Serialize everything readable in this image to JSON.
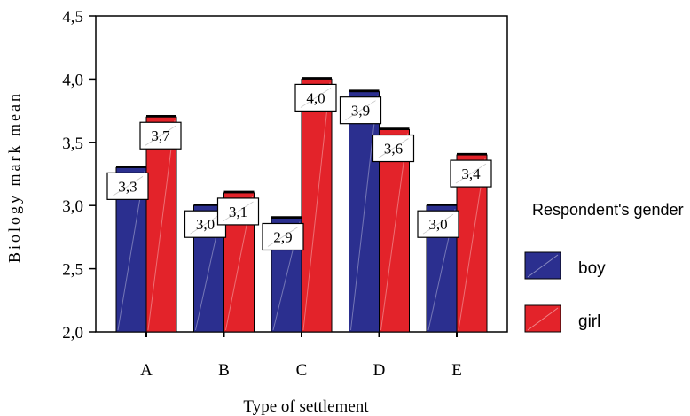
{
  "chart_data": {
    "type": "bar",
    "xlabel": "Type of settlement",
    "ylabel": "Biology mark mean",
    "ylim": [
      2.0,
      4.5
    ],
    "yticks": [
      "2,0",
      "2,5",
      "3,0",
      "3,5",
      "4,0",
      "4,5"
    ],
    "categories": [
      "A",
      "B",
      "C",
      "D",
      "E"
    ],
    "series": [
      {
        "name": "boy",
        "color": "#2b2f8f",
        "values": [
          3.3,
          3.0,
          2.9,
          3.9,
          3.0
        ],
        "labels": [
          "3,3",
          "3,0",
          "2,9",
          "3,9",
          "3,0"
        ]
      },
      {
        "name": "girl",
        "color": "#e3232a",
        "values": [
          3.7,
          3.1,
          4.0,
          3.6,
          3.4
        ],
        "labels": [
          "3,7",
          "3,1",
          "4,0",
          "3,6",
          "3,4"
        ]
      }
    ],
    "legend": {
      "title": "Respondent's gender",
      "position": "right"
    },
    "grid": false
  }
}
